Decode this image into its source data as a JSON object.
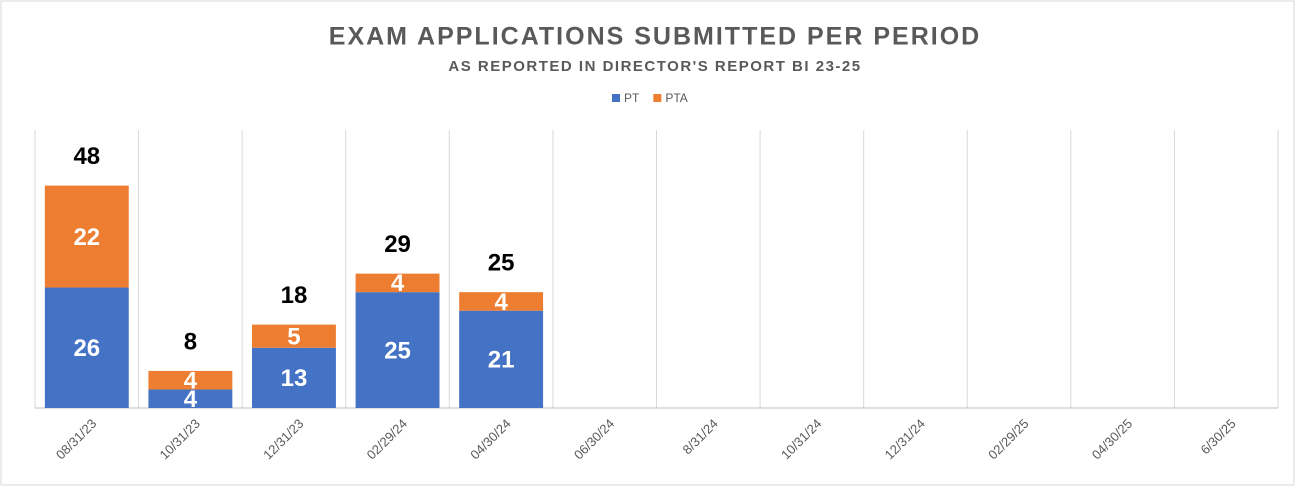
{
  "chart_data": {
    "type": "stacked_bar",
    "title": "EXAM APPLICATIONS SUBMITTED PER PERIOD",
    "subtitle": "AS REPORTED IN DIRECTOR'S REPORT BI 23-25",
    "categories": [
      "08/31/23",
      "10/31/23",
      "12/31/23",
      "02/29/24",
      "04/30/24",
      "06/30/24",
      "8/31/24",
      "10/31/24",
      "12/31/24",
      "02/29/25",
      "04/30/25",
      "6/30/25"
    ],
    "series": [
      {
        "name": "PT",
        "color": "#4472c4",
        "values": [
          26,
          4,
          13,
          25,
          21,
          null,
          null,
          null,
          null,
          null,
          null,
          null
        ]
      },
      {
        "name": "PTA",
        "color": "#ed7d31",
        "values": [
          22,
          4,
          5,
          4,
          4,
          null,
          null,
          null,
          null,
          null,
          null,
          null
        ]
      }
    ],
    "totals": [
      48,
      8,
      18,
      29,
      25,
      null,
      null,
      null,
      null,
      null,
      null,
      null
    ],
    "ylim": [
      0,
      60
    ],
    "grid": "vertical",
    "legend": "top"
  }
}
